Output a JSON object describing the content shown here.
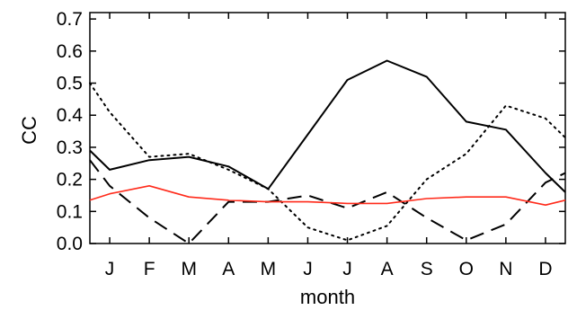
{
  "chart_data": {
    "type": "line",
    "xlabel": "month",
    "ylabel": "CC",
    "categories": [
      "J",
      "F",
      "M",
      "A",
      "M",
      "J",
      "J",
      "A",
      "S",
      "O",
      "N",
      "D"
    ],
    "yticks": [
      "0.0",
      "0.1",
      "0.2",
      "0.3",
      "0.4",
      "0.5",
      "0.6",
      "0.7"
    ],
    "ylim": [
      0.0,
      0.72
    ],
    "xlim": [
      -0.5,
      11.5
    ],
    "grid": false,
    "legend": "none",
    "series": [
      {
        "style": "solid",
        "color": "#000000",
        "x": [
          -0.5,
          0,
          1,
          2,
          3,
          4,
          5,
          6,
          7,
          8,
          9,
          10,
          11,
          11.5
        ],
        "values": [
          0.29,
          0.23,
          0.26,
          0.27,
          0.24,
          0.17,
          0.34,
          0.51,
          0.57,
          0.52,
          0.38,
          0.355,
          0.22,
          0.16
        ]
      },
      {
        "style": "dotted",
        "color": "#000000",
        "x": [
          -0.5,
          0,
          1,
          2,
          3,
          4,
          5,
          6,
          7,
          8,
          9,
          10,
          11,
          11.5
        ],
        "values": [
          0.5,
          0.41,
          0.27,
          0.28,
          0.23,
          0.17,
          0.05,
          0.01,
          0.055,
          0.2,
          0.28,
          0.43,
          0.39,
          0.33
        ]
      },
      {
        "style": "dashed",
        "color": "#000000",
        "x": [
          -0.5,
          0,
          1,
          2,
          3,
          4,
          5,
          6,
          7,
          8,
          9,
          10,
          11,
          11.5
        ],
        "values": [
          0.26,
          0.18,
          0.08,
          0.0,
          0.13,
          0.13,
          0.15,
          0.11,
          0.16,
          0.08,
          0.01,
          0.06,
          0.19,
          0.22
        ]
      },
      {
        "style": "solid",
        "color": "#ff2a1a",
        "x": [
          -0.5,
          0,
          1,
          2,
          3,
          4,
          5,
          6,
          7,
          8,
          9,
          10,
          11,
          11.5
        ],
        "values": [
          0.135,
          0.155,
          0.18,
          0.145,
          0.135,
          0.13,
          0.13,
          0.125,
          0.125,
          0.14,
          0.145,
          0.145,
          0.12,
          0.135
        ]
      }
    ]
  }
}
